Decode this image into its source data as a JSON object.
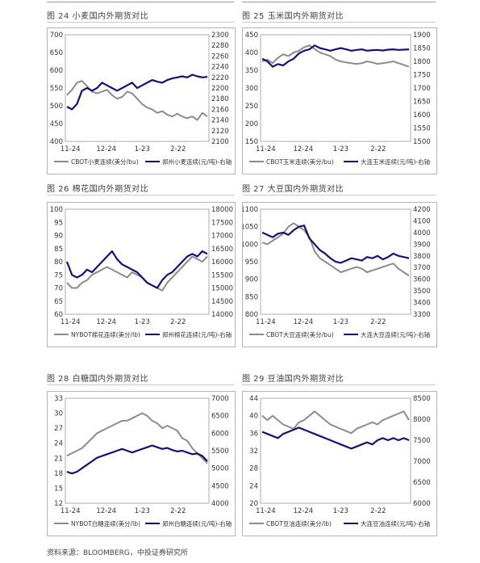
{
  "source": "资料来源：BLOOMBERG，中投证券研究所",
  "colors": {
    "foreign": "#8c8c8c",
    "domestic": "#12127a"
  },
  "chart_data": [
    {
      "title": "图 24  小麦国内外期货对比",
      "type": "line",
      "x_ticks": [
        "11-24",
        "12-24",
        "1-23",
        "2-22"
      ],
      "y_left": {
        "ticks": [
          700,
          650,
          600,
          550,
          500,
          450,
          400
        ],
        "range": [
          400,
          700
        ]
      },
      "y_right": {
        "ticks": [
          2300,
          2280,
          2260,
          2240,
          2220,
          2200,
          2180,
          2160,
          2140,
          2120,
          2100
        ],
        "range": [
          2100,
          2300
        ]
      },
      "series": [
        {
          "name": "CBOT小麦连续(美分/bu)",
          "axis": "left",
          "values": [
            530,
            545,
            565,
            570,
            555,
            540,
            535,
            540,
            545,
            530,
            520,
            525,
            540,
            535,
            520,
            505,
            495,
            490,
            480,
            485,
            475,
            470,
            478,
            470,
            465,
            470,
            460,
            480,
            470
          ]
        },
        {
          "name": "郑州小麦连续(元/吨)-右轴",
          "axis": "right",
          "values": [
            2165,
            2160,
            2170,
            2195,
            2200,
            2195,
            2200,
            2210,
            2205,
            2200,
            2195,
            2200,
            2205,
            2210,
            2200,
            2205,
            2210,
            2215,
            2212,
            2210,
            2215,
            2218,
            2220,
            2222,
            2220,
            2225,
            2222,
            2220,
            2221
          ]
        }
      ]
    },
    {
      "title": "图 25  玉米国内外期货对比",
      "type": "line",
      "x_ticks": [
        "11-24",
        "12-24",
        "1-23",
        "2-22"
      ],
      "y_left": {
        "ticks": [
          450,
          400,
          350,
          300,
          250,
          200,
          150
        ],
        "range": [
          150,
          450
        ]
      },
      "y_right": {
        "ticks": [
          1900,
          1850,
          1800,
          1750,
          1700,
          1650,
          1600,
          1550,
          1500
        ],
        "range": [
          1500,
          1900
        ]
      },
      "series": [
        {
          "name": "CBOT玉米连续(美分/bu)",
          "axis": "left",
          "values": [
            375,
            380,
            370,
            385,
            395,
            390,
            400,
            405,
            415,
            420,
            410,
            400,
            395,
            390,
            380,
            375,
            372,
            370,
            368,
            370,
            375,
            372,
            368,
            370,
            372,
            375,
            370,
            365,
            360
          ]
        },
        {
          "name": "大连玉米连续(元/吨)-右轴",
          "axis": "right",
          "values": [
            1810,
            1800,
            1780,
            1790,
            1785,
            1800,
            1810,
            1830,
            1840,
            1845,
            1860,
            1850,
            1845,
            1840,
            1845,
            1850,
            1845,
            1840,
            1843,
            1845,
            1840,
            1842,
            1843,
            1841,
            1844,
            1845,
            1843,
            1844,
            1845
          ]
        }
      ]
    },
    {
      "title": "图 26  棉花国内外期货对比",
      "type": "line",
      "x_ticks": [
        "11-24",
        "12-24",
        "1-23",
        "2-22"
      ],
      "y_left": {
        "ticks": [
          100,
          95,
          90,
          85,
          80,
          75,
          70,
          65,
          60
        ],
        "range": [
          60,
          100
        ]
      },
      "y_right": {
        "ticks": [
          18000,
          17500,
          17000,
          16500,
          16000,
          15500,
          15000,
          14500,
          14000
        ],
        "range": [
          14000,
          18000
        ]
      },
      "series": [
        {
          "name": "NYBOT棉花连续(美分/lb)",
          "axis": "left",
          "values": [
            72,
            70,
            70,
            72,
            73,
            75,
            76,
            77,
            78,
            77,
            76,
            75,
            74,
            76,
            75,
            74,
            72,
            71,
            70,
            69,
            72,
            74,
            76,
            78,
            80,
            82,
            81,
            80,
            82
          ]
        },
        {
          "name": "郑州棉花连续(元/吨)-右轴",
          "axis": "right",
          "values": [
            16000,
            15500,
            15400,
            15500,
            15700,
            15600,
            15800,
            16000,
            16200,
            16400,
            16100,
            15900,
            15800,
            15700,
            15600,
            15400,
            15200,
            15100,
            15000,
            15300,
            15500,
            15600,
            15800,
            16000,
            16200,
            16300,
            16200,
            16400,
            16300
          ]
        }
      ]
    },
    {
      "title": "图 27  大豆国内外期货对比",
      "type": "line",
      "x_ticks": [
        "11-24",
        "12-24",
        "1-23",
        "2-22"
      ],
      "y_left": {
        "ticks": [
          1100,
          1050,
          1000,
          950,
          900,
          850,
          800
        ],
        "range": [
          800,
          1100
        ]
      },
      "y_right": {
        "ticks": [
          4200,
          4100,
          4000,
          3900,
          3800,
          3700,
          3600,
          3500,
          3400,
          3300
        ],
        "range": [
          3300,
          4200
        ]
      },
      "series": [
        {
          "name": "CBOT大豆连续(美分/bu)",
          "axis": "left",
          "values": [
            1005,
            1000,
            1010,
            1020,
            1030,
            1050,
            1060,
            1050,
            1040,
            1020,
            980,
            960,
            950,
            940,
            930,
            920,
            925,
            930,
            935,
            930,
            920,
            925,
            930,
            935,
            940,
            945,
            930,
            920,
            910
          ]
        },
        {
          "name": "大连大豆连续(元/吨)-右轴",
          "axis": "right",
          "values": [
            4000,
            3980,
            3960,
            3990,
            4000,
            3980,
            4020,
            4050,
            4060,
            3950,
            3900,
            3850,
            3820,
            3780,
            3750,
            3740,
            3760,
            3780,
            3770,
            3760,
            3790,
            3780,
            3800,
            3770,
            3790,
            3820,
            3800,
            3790,
            3780
          ]
        }
      ]
    },
    {
      "title": "图 28  白糖国内外期货对比",
      "type": "line",
      "x_ticks": [
        "11-24",
        "12-24",
        "1-23",
        "2-22"
      ],
      "y_left": {
        "ticks": [
          33,
          30,
          27,
          24,
          21,
          18,
          15,
          12
        ],
        "range": [
          12,
          33
        ]
      },
      "y_right": {
        "ticks": [
          7000,
          6500,
          6000,
          5500,
          5000,
          4500,
          4000
        ],
        "range": [
          4000,
          7000
        ]
      },
      "series": [
        {
          "name": "NYBOT白糖连续(美分/lb)",
          "axis": "left",
          "values": [
            21.5,
            22,
            22.5,
            23,
            24,
            25,
            26,
            26.5,
            27,
            27.5,
            28,
            28.5,
            28.5,
            29,
            29.5,
            30,
            29.5,
            28.5,
            28,
            27,
            27.5,
            27,
            26.5,
            25,
            24.5,
            23,
            22,
            21,
            20
          ]
        },
        {
          "name": "郑州白糖连续(元/吨)-右轴",
          "axis": "right",
          "values": [
            4900,
            4850,
            4900,
            5000,
            5100,
            5200,
            5300,
            5350,
            5400,
            5450,
            5500,
            5550,
            5500,
            5450,
            5500,
            5550,
            5600,
            5650,
            5600,
            5550,
            5580,
            5520,
            5480,
            5500,
            5450,
            5400,
            5420,
            5350,
            5200
          ]
        }
      ]
    },
    {
      "title": "图 29  豆油国内外期货对比",
      "type": "line",
      "x_ticks": [
        "11-24",
        "12-24",
        "1-23",
        "2-22"
      ],
      "y_left": {
        "ticks": [
          44,
          40,
          36,
          32,
          28,
          24,
          20
        ],
        "range": [
          20,
          44
        ]
      },
      "y_right": {
        "ticks": [
          8500,
          8000,
          7500,
          7000,
          6500,
          6000
        ],
        "range": [
          6000,
          8500
        ]
      },
      "series": [
        {
          "name": "CBOT豆油连续(美分/lb)",
          "axis": "left",
          "values": [
            40,
            39,
            40,
            39,
            38,
            37.5,
            37,
            38.5,
            39,
            40,
            41,
            40,
            39,
            38,
            37.5,
            37,
            36.5,
            36,
            37,
            37.5,
            38,
            38.5,
            38,
            39,
            39.5,
            40,
            40.5,
            41,
            39
          ]
        },
        {
          "name": "大连豆油连续(元/吨)-右轴",
          "axis": "right",
          "values": [
            7700,
            7650,
            7600,
            7550,
            7650,
            7700,
            7750,
            7800,
            7750,
            7700,
            7650,
            7600,
            7550,
            7500,
            7450,
            7400,
            7350,
            7300,
            7350,
            7400,
            7450,
            7400,
            7500,
            7550,
            7500,
            7550,
            7500,
            7550,
            7500
          ]
        }
      ]
    }
  ]
}
